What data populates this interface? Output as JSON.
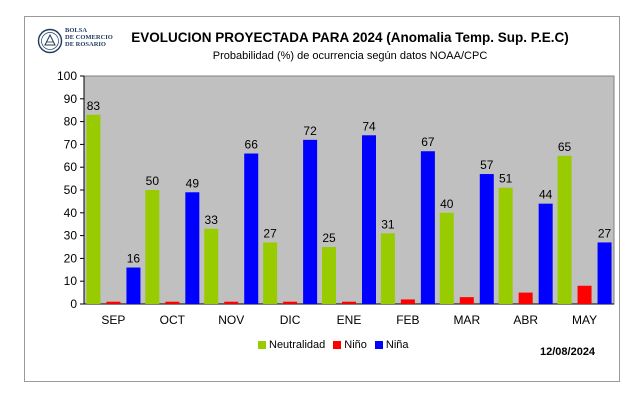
{
  "logo": {
    "line1": "BOLSA",
    "line2": "DE COMERCIO",
    "line3": "DE ROSARIO"
  },
  "chart_data": {
    "type": "bar",
    "title": "EVOLUCION PROYECTADA PARA 2024 (Anomalia Temp. Sup. P.E.C)",
    "subtitle": "Probabilidad (%) de ocurrencia según datos NOAA/CPC",
    "categories": [
      "SEP",
      "OCT",
      "NOV",
      "DIC",
      "ENE",
      "FEB",
      "MAR",
      "ABR",
      "MAY"
    ],
    "series": [
      {
        "name": "Neutralidad",
        "color": "#99cc00",
        "values": [
          83,
          50,
          33,
          27,
          25,
          31,
          40,
          51,
          65
        ],
        "labels": true
      },
      {
        "name": "Niño",
        "color": "#ff0000",
        "values": [
          1,
          1,
          1,
          1,
          1,
          2,
          3,
          5,
          8
        ],
        "labels": false
      },
      {
        "name": "Niña",
        "color": "#0000ff",
        "values": [
          16,
          49,
          66,
          72,
          74,
          67,
          57,
          44,
          27
        ],
        "labels": true
      }
    ],
    "ylim": [
      0,
      100
    ],
    "yticks": [
      0,
      10,
      20,
      30,
      40,
      50,
      60,
      70,
      80,
      90,
      100
    ],
    "grid": false,
    "background": "#c0c0c0",
    "legend_position": "bottom",
    "date": "12/08/2024"
  }
}
